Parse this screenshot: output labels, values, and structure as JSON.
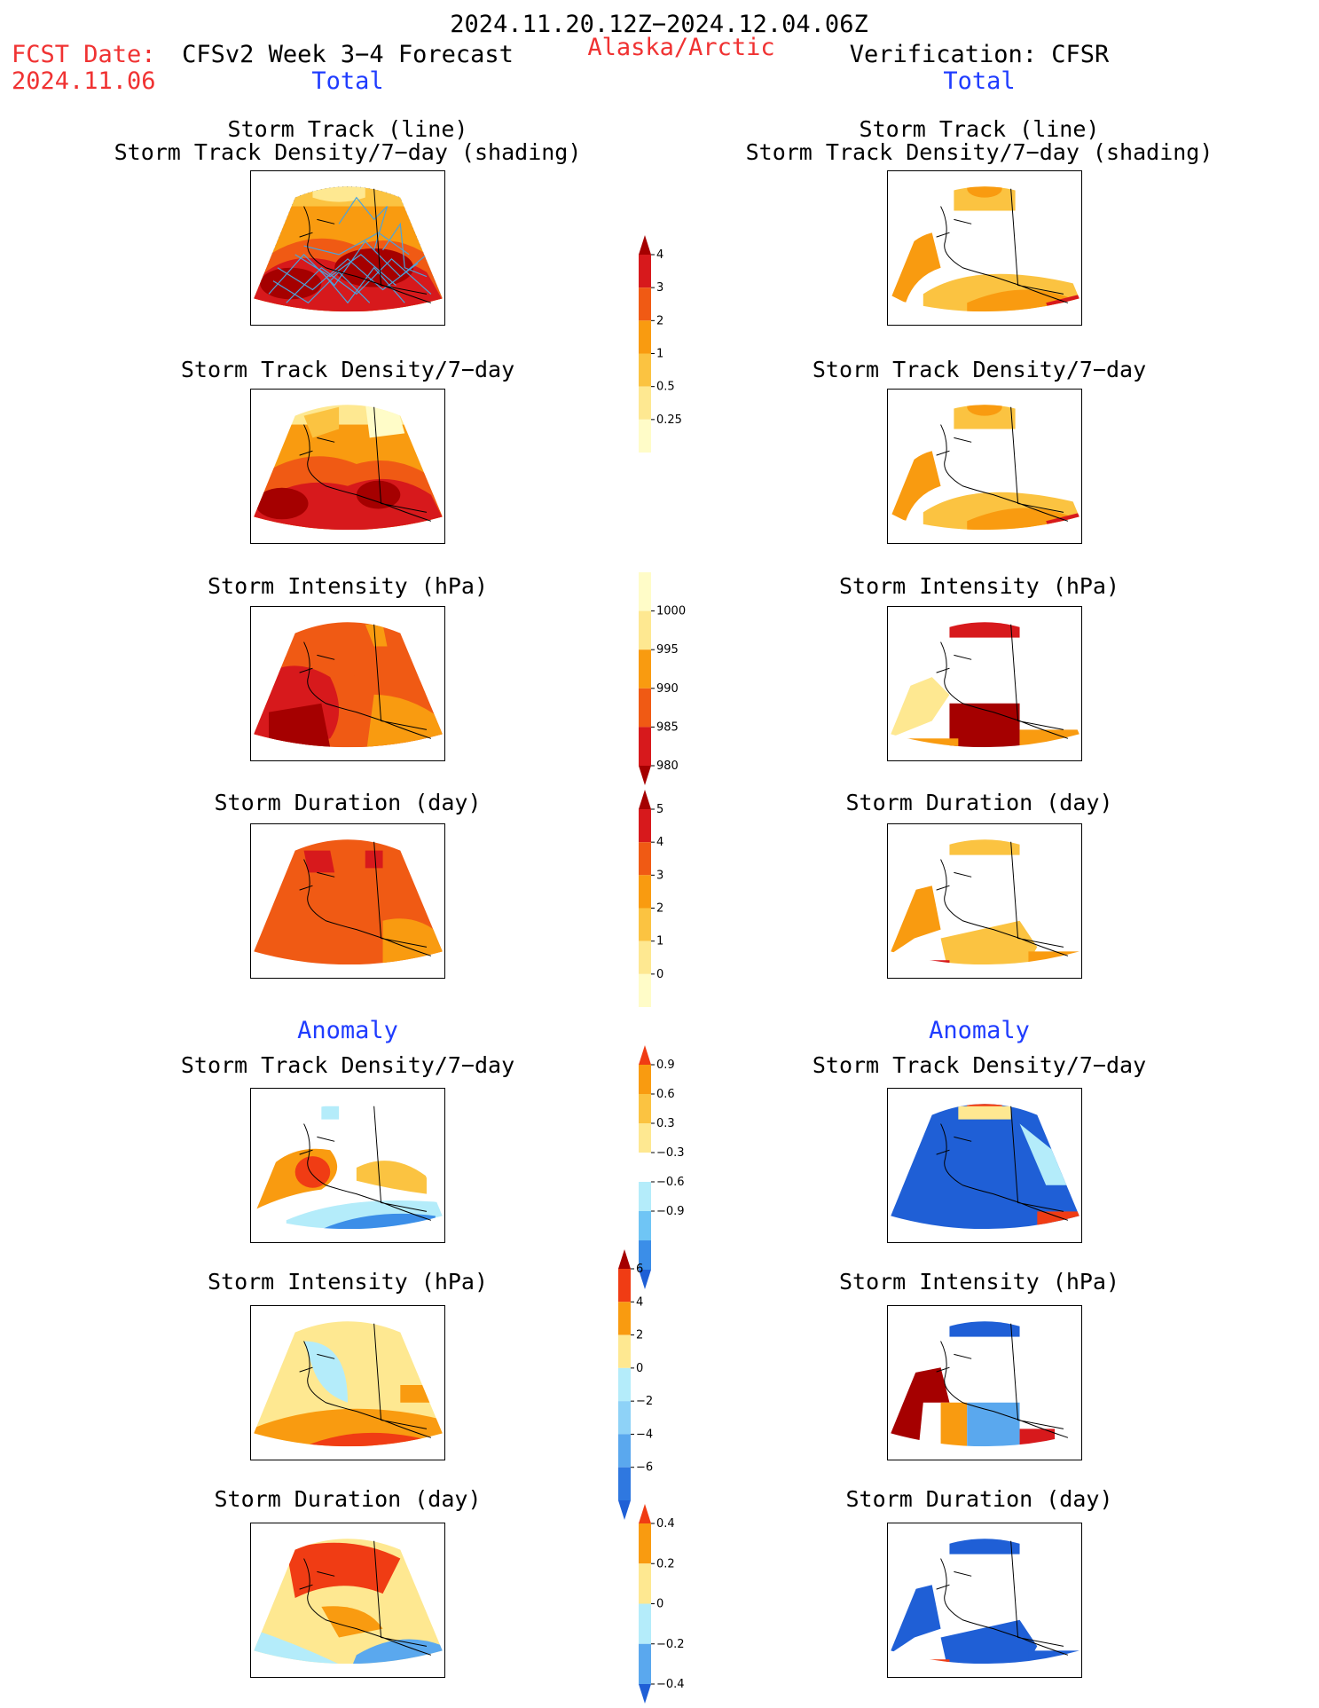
{
  "header": {
    "period": "2024.11.20.12Z−2024.12.04.06Z",
    "fcst_label": "FCST Date:",
    "fcst_date": "2024.11.06",
    "model": "CFSv2 Week 3−4 Forecast",
    "region": "Alaska/Arctic",
    "verification": "Verification: CFSR",
    "total_left": "Total",
    "total_right": "Total",
    "anomaly_left": "Anomaly",
    "anomaly_right": "Anomaly"
  },
  "panels": {
    "track_line": "Storm Track (line)",
    "track_density_shading": "Storm Track Density/7−day (shading)",
    "track_density": "Storm Track Density/7−day",
    "intensity": "Storm Intensity (hPa)",
    "duration": "Storm Duration (day)"
  },
  "colorbars": {
    "track_density": {
      "labels": [
        "4",
        "3",
        "2",
        "1",
        "0.5",
        "0.25"
      ],
      "colors": [
        "#a50000",
        "#d7191c",
        "#f05a14",
        "#f99b10",
        "#fbc341",
        "#fee891",
        "#fffcc8"
      ]
    },
    "intensity": {
      "labels": [
        "1000",
        "995",
        "990",
        "985",
        "980"
      ],
      "colors": [
        "#fffcc8",
        "#fee891",
        "#f99b10",
        "#f05a14",
        "#d7191c",
        "#a50000"
      ]
    },
    "duration": {
      "labels": [
        "5",
        "4",
        "3",
        "2",
        "1",
        "0"
      ],
      "colors": [
        "#a50000",
        "#d7191c",
        "#f05a14",
        "#f99b10",
        "#fbc341",
        "#fee891",
        "#fffcc8"
      ]
    },
    "anom_density": {
      "labels": [
        "0.9",
        "0.6",
        "0.3",
        "−0.3",
        "−0.6",
        "−0.9"
      ],
      "colors": [
        "#f03c14",
        "#f99b10",
        "#fbc341",
        "#fee891",
        "#ffffff",
        "#b4ecfa",
        "#6fc5f5",
        "#3b8ee8",
        "#1f5fd6"
      ]
    },
    "anom_intensity": {
      "labels": [
        "6",
        "4",
        "2",
        "0",
        "−2",
        "−4",
        "−6"
      ],
      "colors": [
        "#a50000",
        "#f03c14",
        "#f99b10",
        "#fee891",
        "#b4ecfa",
        "#8ed2f7",
        "#5aa8ee",
        "#2f78e0",
        "#1f5fd6"
      ]
    },
    "anom_duration": {
      "labels": [
        "0.4",
        "0.2",
        "0",
        "−0.2",
        "−0.4"
      ],
      "colors": [
        "#f03c14",
        "#f99b10",
        "#fee891",
        "#b4ecfa",
        "#5aa8ee",
        "#1f5fd6"
      ]
    }
  }
}
